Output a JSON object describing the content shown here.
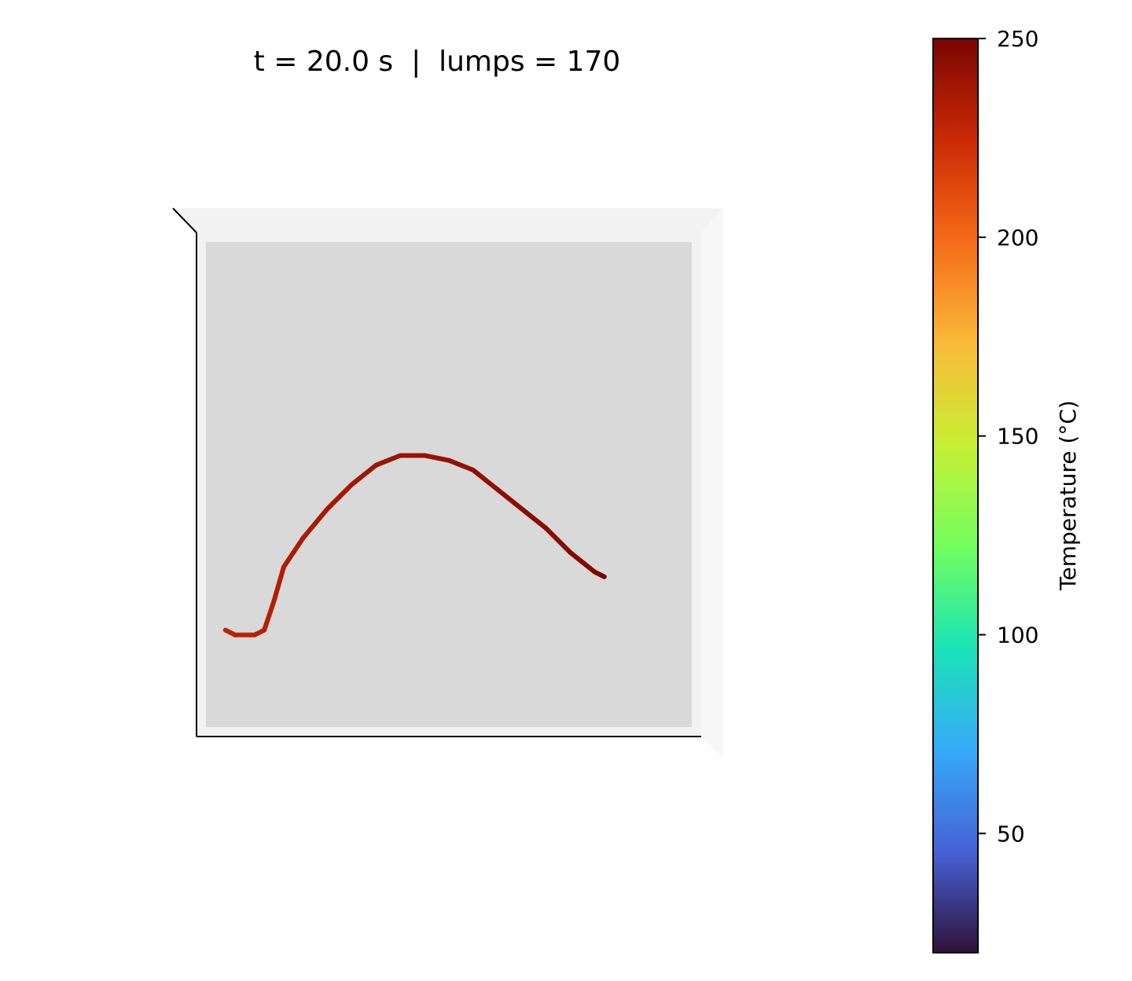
{
  "title": "t = 20.0 s  |  lumps = 170",
  "colorbar": {
    "label": "Temperature (°C)",
    "colormap": "turbo",
    "vmin": 20,
    "vmax": 250,
    "ticks": [
      50,
      100,
      150,
      200,
      250
    ],
    "tick_labels": [
      "50",
      "100",
      "150",
      "200",
      "250"
    ],
    "colors": [
      "#30123b",
      "#4662d7",
      "#36aaf9",
      "#1ae4b6",
      "#72fe5e",
      "#c8ef34",
      "#faba39",
      "#f66b19",
      "#cb2a04",
      "#7a0403"
    ]
  },
  "chart_data": {
    "type": "line3d",
    "title": "t = 20.0 s  |  lumps = 170",
    "view": "top-down 3D axes, tick labels hidden",
    "pane_color": "#d9d9d9",
    "series": [
      {
        "lumps": 170,
        "color_value_range": [
          225,
          250
        ],
        "x": [
          0.04,
          0.06,
          0.1,
          0.12,
          0.14,
          0.16,
          0.18,
          0.2,
          0.25,
          0.3,
          0.35,
          0.4,
          0.45,
          0.5,
          0.55,
          0.6,
          0.65,
          0.7,
          0.75,
          0.8,
          0.82
        ],
        "y": [
          0.2,
          0.19,
          0.19,
          0.2,
          0.26,
          0.33,
          0.36,
          0.39,
          0.45,
          0.5,
          0.54,
          0.56,
          0.56,
          0.55,
          0.53,
          0.49,
          0.45,
          0.41,
          0.36,
          0.32,
          0.31
        ],
        "temperature": [
          228,
          229,
          230,
          231,
          232,
          233,
          234,
          235,
          236,
          237,
          238,
          239,
          240,
          241,
          242,
          243,
          244,
          245,
          246,
          248,
          250
        ]
      }
    ]
  }
}
